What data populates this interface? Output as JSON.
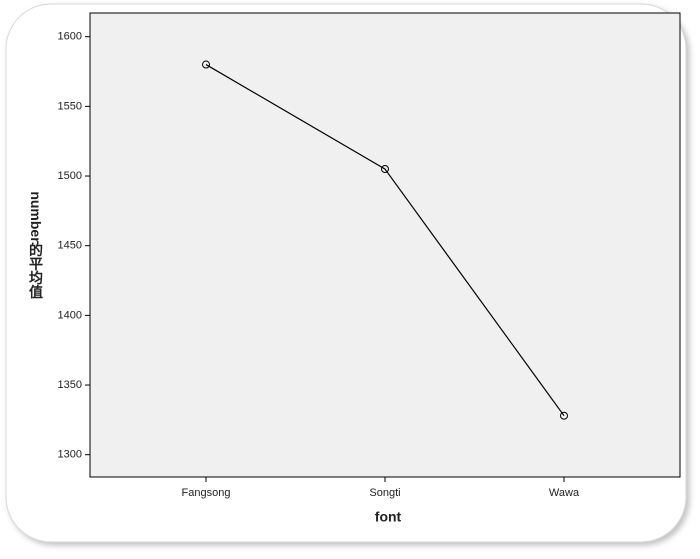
{
  "chart_data": {
    "type": "line",
    "x_label": "font",
    "y_label": "number的平均值",
    "categories": [
      "Fangsong",
      "Songti",
      "Wawa"
    ],
    "values": [
      1580,
      1505,
      1328
    ],
    "color": "#000000",
    "ylim": [
      1284,
      1617
    ],
    "yticks": [
      1300,
      1350,
      1400,
      1450,
      1500,
      1550,
      1600
    ],
    "grid": false
  }
}
